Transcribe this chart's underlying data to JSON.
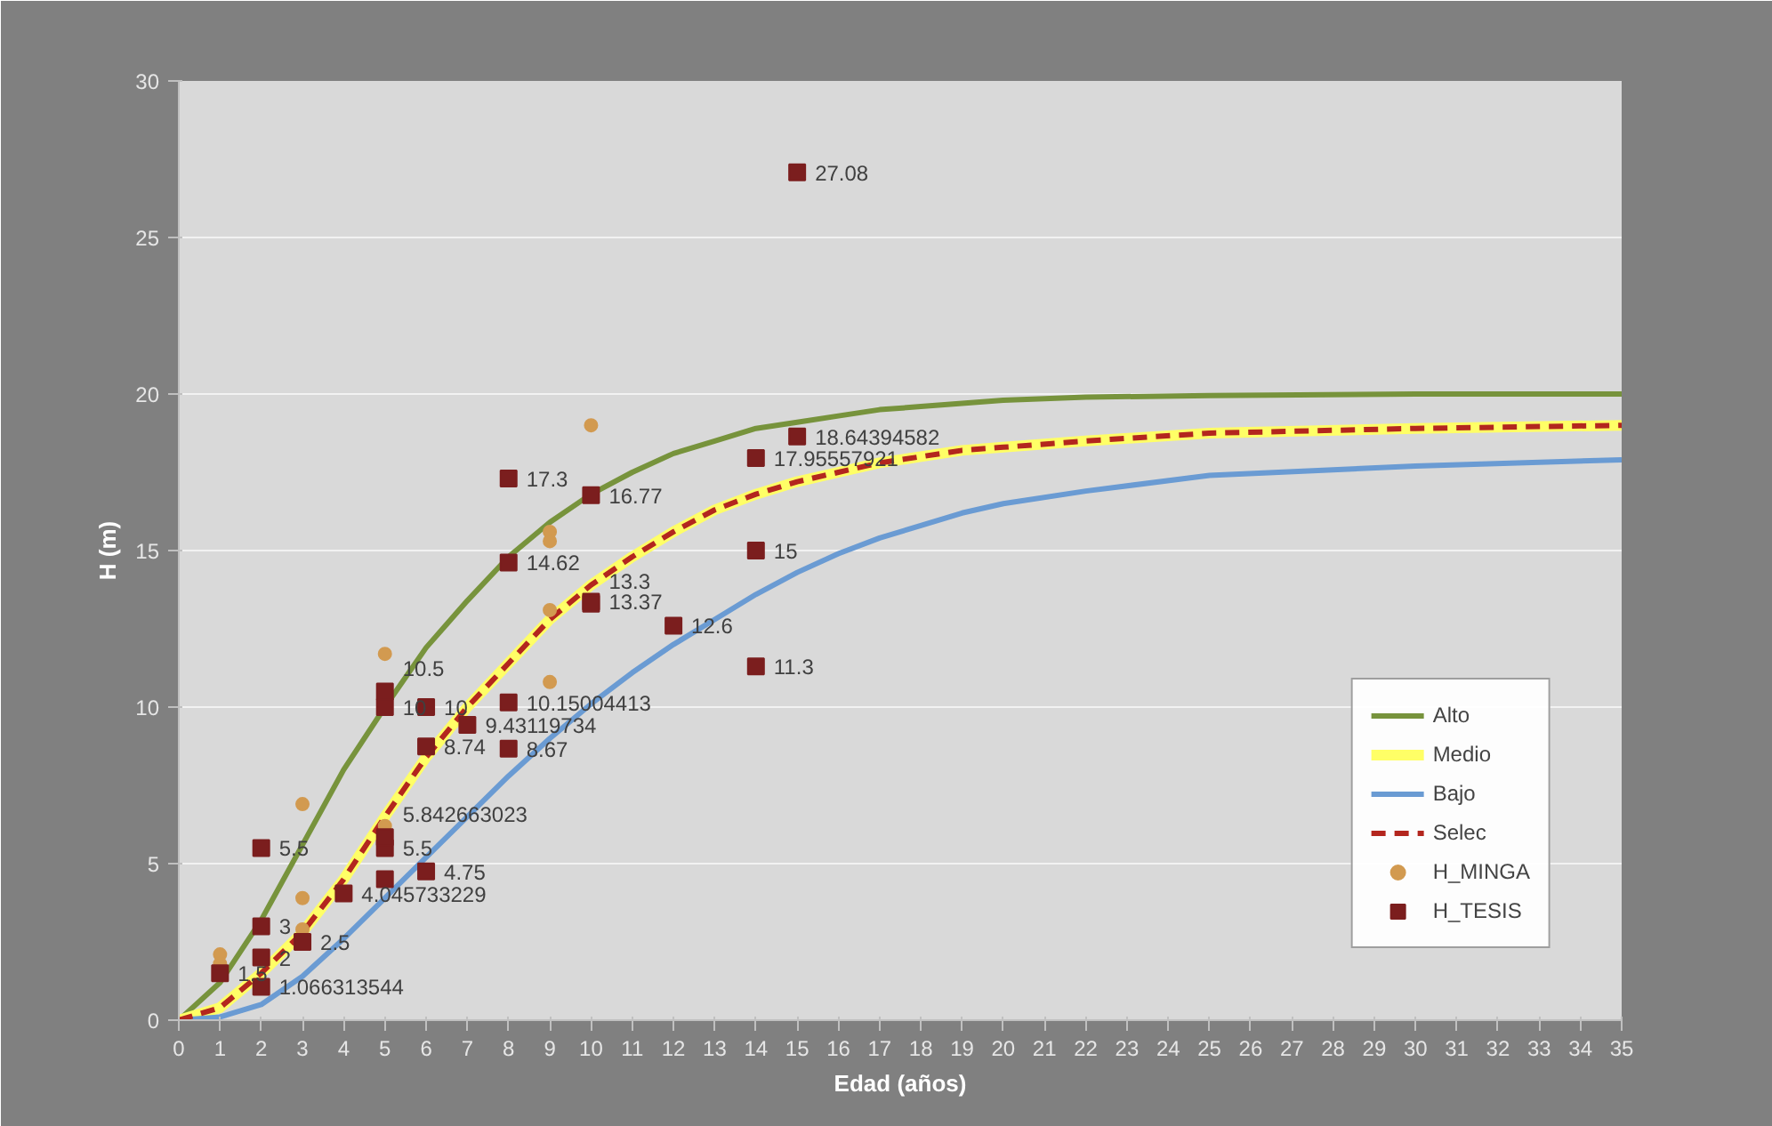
{
  "chart_data": {
    "type": "line",
    "xlabel": "Edad (años)",
    "ylabel": "H (m)",
    "xlim": [
      0,
      35
    ],
    "xticks": [
      0,
      1,
      2,
      3,
      4,
      5,
      6,
      7,
      8,
      9,
      10,
      11,
      12,
      13,
      14,
      15,
      16,
      17,
      18,
      19,
      20,
      21,
      22,
      23,
      24,
      25,
      26,
      27,
      28,
      29,
      30,
      31,
      32,
      33,
      34,
      35
    ],
    "ylim": [
      0,
      30
    ],
    "yticks": [
      0,
      5,
      10,
      15,
      20,
      25,
      30
    ],
    "grid": "y",
    "legend": "bottom right",
    "series": [
      {
        "name": "Alto",
        "color": "#77933c",
        "line_style": "solid",
        "x": [
          0,
          1,
          2,
          3,
          4,
          5,
          6,
          7,
          8,
          9,
          10,
          11,
          12,
          13,
          14,
          15,
          16,
          17,
          18,
          19,
          20,
          22,
          25,
          30,
          35
        ],
        "values": [
          0,
          1.2,
          3.2,
          5.6,
          8.0,
          10.0,
          11.9,
          13.4,
          14.8,
          15.9,
          16.8,
          17.5,
          18.1,
          18.5,
          18.9,
          19.1,
          19.3,
          19.5,
          19.6,
          19.7,
          19.8,
          19.9,
          19.95,
          20,
          20
        ]
      },
      {
        "name": "Medio",
        "color": "#ffff66",
        "line_style": "solid",
        "x": [
          0,
          1,
          2,
          3,
          4,
          5,
          6,
          7,
          8,
          9,
          10,
          11,
          12,
          13,
          14,
          15,
          16,
          17,
          18,
          19,
          20,
          22,
          25,
          30,
          35
        ],
        "values": [
          0,
          0.4,
          1.5,
          2.8,
          4.5,
          6.5,
          8.4,
          10.0,
          11.4,
          12.8,
          13.9,
          14.8,
          15.6,
          16.3,
          16.8,
          17.2,
          17.5,
          17.8,
          18.0,
          18.2,
          18.3,
          18.5,
          18.75,
          18.9,
          19.0
        ]
      },
      {
        "name": "Bajo",
        "color": "#6a9bd3",
        "line_style": "solid",
        "x": [
          0,
          1,
          2,
          3,
          4,
          5,
          6,
          7,
          8,
          9,
          10,
          11,
          12,
          13,
          14,
          15,
          16,
          17,
          18,
          19,
          20,
          22,
          25,
          30,
          35
        ],
        "values": [
          0,
          0.1,
          0.5,
          1.4,
          2.6,
          3.9,
          5.2,
          6.5,
          7.8,
          9.0,
          10.1,
          11.1,
          12.0,
          12.8,
          13.6,
          14.3,
          14.9,
          15.4,
          15.8,
          16.2,
          16.5,
          16.9,
          17.4,
          17.7,
          17.9
        ]
      },
      {
        "name": "Selec",
        "color": "#b3261e",
        "line_style": "dashed",
        "x": [
          0,
          1,
          2,
          3,
          4,
          5,
          6,
          7,
          8,
          9,
          10,
          11,
          12,
          13,
          14,
          15,
          16,
          17,
          18,
          19,
          20,
          22,
          25,
          30,
          35
        ],
        "values": [
          0,
          0.4,
          1.5,
          2.8,
          4.5,
          6.5,
          8.4,
          10.0,
          11.4,
          12.8,
          13.9,
          14.8,
          15.6,
          16.3,
          16.8,
          17.2,
          17.5,
          17.8,
          18.0,
          18.2,
          18.3,
          18.5,
          18.75,
          18.9,
          19.0
        ]
      },
      {
        "name": "H_MINGA",
        "type": "scatter",
        "marker": "circle",
        "color": "#d29a50",
        "x": [
          1,
          1,
          3,
          3,
          3,
          5,
          5,
          9,
          9,
          9,
          9,
          10
        ],
        "values": [
          2.1,
          1.8,
          6.9,
          3.9,
          2.9,
          11.7,
          6.2,
          15.6,
          15.3,
          13.1,
          10.8,
          19.0
        ]
      },
      {
        "name": "H_TESIS",
        "type": "scatter",
        "marker": "square",
        "color": "#7b1e1e",
        "x": [
          1,
          2,
          2,
          2,
          2,
          3,
          4,
          5,
          5,
          5,
          5,
          5,
          6,
          6,
          6,
          7,
          8,
          8,
          8,
          8,
          10,
          10,
          10,
          12,
          14,
          14,
          14,
          15,
          15
        ],
        "values": [
          1.5,
          1.066313544,
          2,
          3,
          5.5,
          2.5,
          4.045733229,
          4.5,
          5.5,
          5.842663023,
          10,
          10.5,
          4.75,
          8.74,
          10,
          9.43119734,
          8.67,
          10.15004413,
          14.62,
          17.3,
          13.37,
          13.3,
          16.77,
          12.6,
          11.3,
          15,
          17.95557921,
          18.64394582,
          27.08
        ],
        "value_labels": [
          "1.5",
          "1.066313544",
          "2",
          "3",
          "5.5",
          "2.5",
          "4.045733229",
          null,
          "5.5",
          "5.842663023",
          "10",
          "10.5",
          "4.75",
          "8.74",
          "10",
          "9.43119734",
          "8.67",
          "10.15004413",
          "14.62",
          "17.3",
          "13.37",
          "13.3",
          "16.77",
          "12.6",
          "11.3",
          "15",
          "17.95557921",
          "18.64394582",
          "27.08"
        ]
      }
    ]
  }
}
